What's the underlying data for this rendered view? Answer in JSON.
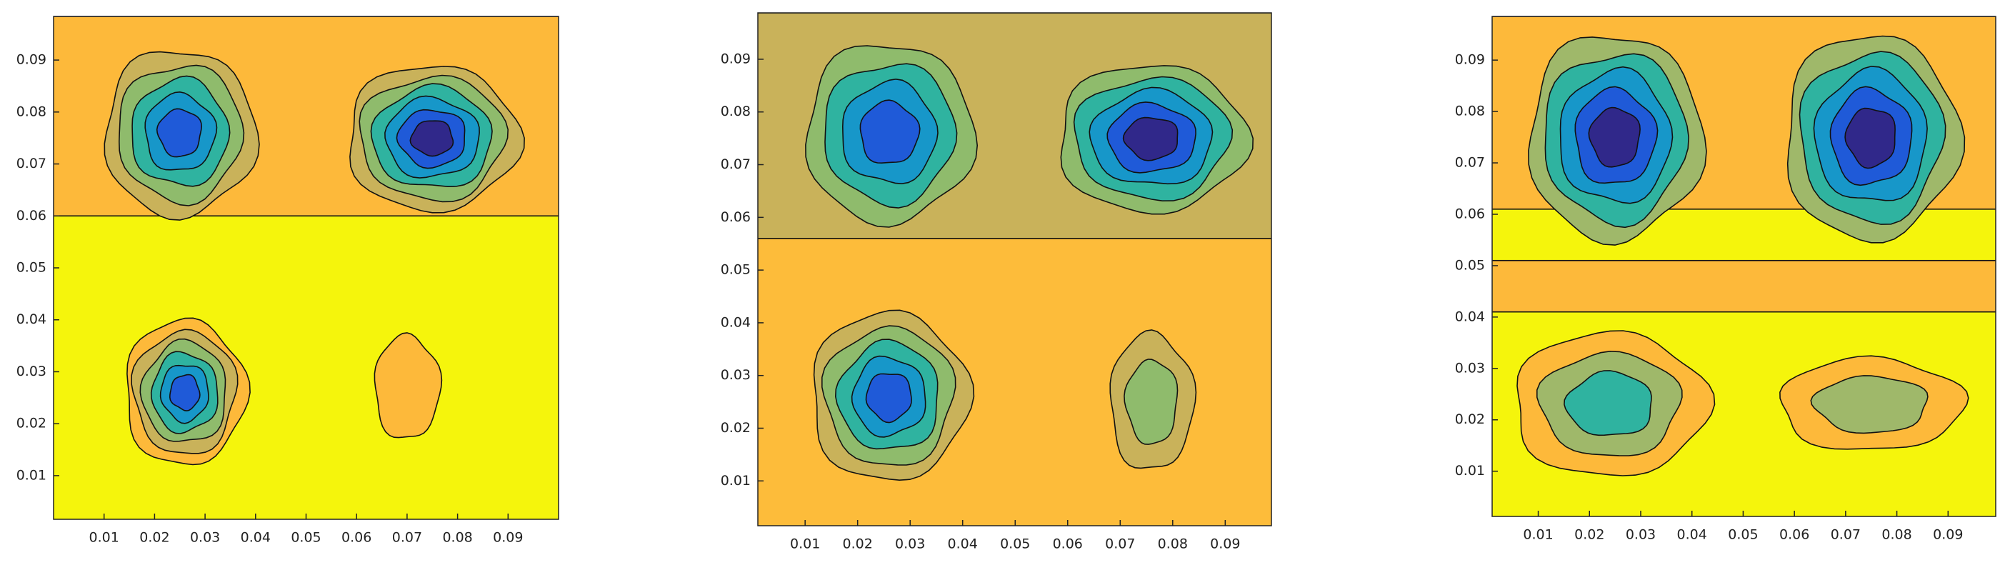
{
  "chart_data": [
    {
      "type": "contour",
      "xlim": [
        0,
        0.1
      ],
      "ylim": [
        0.0016,
        0.0984
      ],
      "xticks": [
        0.01,
        0.02,
        0.03,
        0.04,
        0.05,
        0.06,
        0.07,
        0.08,
        0.09
      ],
      "yticks": [
        0.01,
        0.02,
        0.03,
        0.04,
        0.05,
        0.06,
        0.07,
        0.08,
        0.09
      ],
      "background": "#f5f50c",
      "palette": [
        "#fdb93a",
        "#c9b25a",
        "#8fbb6c",
        "#2fb3a0",
        "#1797c9",
        "#1f5ad8",
        "#30288a"
      ],
      "regions": [
        {
          "ylim": [
            0.06,
            0.0984
          ],
          "color": "#fdb93a"
        }
      ],
      "peaks": [
        {
          "x": 0.025,
          "y": 0.076,
          "rx": 0.015,
          "ry": 0.016,
          "levels": [
            1,
            5
          ]
        },
        {
          "x": 0.075,
          "y": 0.075,
          "rx": 0.017,
          "ry": 0.014,
          "levels": [
            1,
            6
          ]
        },
        {
          "x": 0.026,
          "y": 0.026,
          "rx": 0.012,
          "ry": 0.014,
          "levels": [
            0,
            5
          ]
        },
        {
          "x": 0.07,
          "y": 0.027,
          "rx": 0.0065,
          "ry": 0.01,
          "levels": [
            0,
            0
          ]
        }
      ]
    },
    {
      "type": "contour",
      "xlim": [
        0.001,
        0.0988
      ],
      "ylim": [
        0.0015,
        0.0988
      ],
      "xticks": [
        0.01,
        0.02,
        0.03,
        0.04,
        0.05,
        0.06,
        0.07,
        0.08,
        0.09
      ],
      "yticks": [
        0.01,
        0.02,
        0.03,
        0.04,
        0.05,
        0.06,
        0.07,
        0.08,
        0.09
      ],
      "background": "#fdbc3a",
      "palette": [
        "#fdbc3a",
        "#c9b25a",
        "#8fbb6c",
        "#2fb3a0",
        "#1797c9",
        "#1f5ad8",
        "#30288a"
      ],
      "regions": [
        {
          "ylim": [
            0.056,
            0.0988
          ],
          "color": "#c9b25a"
        }
      ],
      "peaks": [
        {
          "x": 0.026,
          "y": 0.076,
          "rx": 0.016,
          "ry": 0.017,
          "levels": [
            2,
            5
          ]
        },
        {
          "x": 0.076,
          "y": 0.075,
          "rx": 0.018,
          "ry": 0.014,
          "levels": [
            2,
            6
          ]
        },
        {
          "x": 0.026,
          "y": 0.026,
          "rx": 0.015,
          "ry": 0.016,
          "levels": [
            1,
            5
          ]
        },
        {
          "x": 0.076,
          "y": 0.025,
          "rx": 0.008,
          "ry": 0.013,
          "levels": [
            1,
            2
          ]
        }
      ]
    },
    {
      "type": "contour",
      "xlim": [
        0.001,
        0.0993
      ],
      "ylim": [
        0.0012,
        0.0985
      ],
      "xticks": [
        0.01,
        0.02,
        0.03,
        0.04,
        0.05,
        0.06,
        0.07,
        0.08,
        0.09
      ],
      "yticks": [
        0.01,
        0.02,
        0.03,
        0.04,
        0.05,
        0.06,
        0.07,
        0.08,
        0.09
      ],
      "background": "#f5f50c",
      "palette": [
        "#fdb93a",
        "#9fb86a",
        "#2fb3a0",
        "#1797c9",
        "#1f5ad8",
        "#30288a"
      ],
      "regions": [
        {
          "ylim": [
            0.061,
            0.0985
          ],
          "color": "#fdb93a"
        },
        {
          "ylim": [
            0.041,
            0.051
          ],
          "color": "#fdb93a"
        }
      ],
      "peaks": [
        {
          "x": 0.025,
          "y": 0.075,
          "rx": 0.017,
          "ry": 0.02,
          "levels": [
            1,
            5
          ]
        },
        {
          "x": 0.075,
          "y": 0.075,
          "rx": 0.017,
          "ry": 0.02,
          "levels": [
            1,
            5
          ]
        },
        {
          "x": 0.024,
          "y": 0.023,
          "rx": 0.019,
          "ry": 0.014,
          "levels": [
            0,
            2
          ]
        },
        {
          "x": 0.075,
          "y": 0.023,
          "rx": 0.018,
          "ry": 0.009,
          "levels": [
            0,
            1
          ]
        }
      ]
    }
  ]
}
